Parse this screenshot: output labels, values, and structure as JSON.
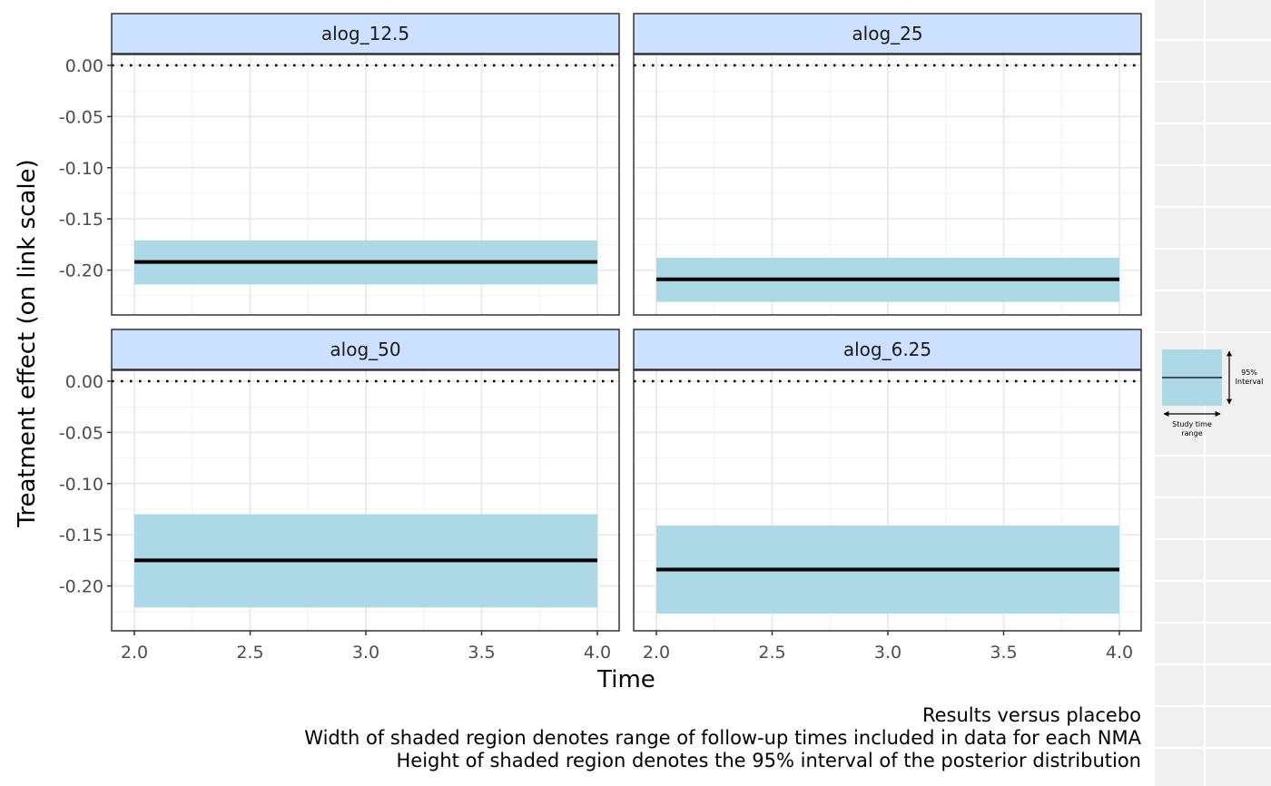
{
  "chart_data": {
    "type": "line",
    "layout": "facet-grid 2x2",
    "xlabel": "Time",
    "ylabel": "Treatment effect (on link scale)",
    "xlim": [
      1.9,
      4.05
    ],
    "ylim": [
      -0.235,
      0.01
    ],
    "x_ticks": [
      2.0,
      2.5,
      3.0,
      3.5,
      4.0
    ],
    "x_tick_labels": [
      "2.0",
      "2.5",
      "3.0",
      "3.5",
      "4.0"
    ],
    "y_ticks": [
      0.0,
      -0.05,
      -0.1,
      -0.15,
      -0.2
    ],
    "y_tick_labels": [
      "0.00",
      "-0.05",
      "-0.10",
      "-0.15",
      "-0.20"
    ],
    "reference_line": {
      "y": 0.0,
      "style": "dotted"
    },
    "grid": true,
    "colors": {
      "interval_fill": "#add8e6",
      "strip_fill": "#cce0ff",
      "estimate_line": "#000000",
      "panel_border": "#333333",
      "side_panel": "#f0f0f0"
    },
    "panels": [
      {
        "label": "alog_12.5",
        "x_start": 2.0,
        "x_end": 4.0,
        "estimate": -0.192,
        "lower": -0.214,
        "upper": -0.171
      },
      {
        "label": "alog_25",
        "x_start": 2.0,
        "x_end": 4.0,
        "estimate": -0.209,
        "lower": -0.231,
        "upper": -0.188
      },
      {
        "label": "alog_50",
        "x_start": 2.0,
        "x_end": 4.0,
        "estimate": -0.175,
        "lower": -0.221,
        "upper": -0.13
      },
      {
        "label": "alog_6.25",
        "x_start": 2.0,
        "x_end": 4.0,
        "estimate": -0.184,
        "lower": -0.227,
        "upper": -0.141
      }
    ],
    "caption": [
      "Results versus placebo",
      "Width of shaded region denotes range of follow-up times included in data for each NMA",
      "Height of shaded region denotes the 95% interval of the posterior distribution"
    ],
    "legend": {
      "interval_label": [
        "95%",
        "Interval"
      ],
      "time_label": [
        "Study time",
        "range"
      ]
    }
  }
}
